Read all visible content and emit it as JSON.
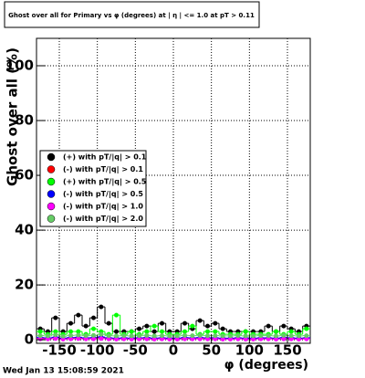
{
  "chart_data": {
    "type": "histogram",
    "title": "Ghost over all for Primary vs φ (degrees) at | η | <= 1.0 at pT > 0.11",
    "x_label": "φ (degrees)",
    "y_label": "Ghost over all (%)",
    "timestamp": "Wed Jan 13 15:08:59 2021",
    "x": [
      -175,
      -165,
      -155,
      -145,
      -135,
      -125,
      -115,
      -105,
      -95,
      -85,
      -75,
      -65,
      -55,
      -45,
      -35,
      -25,
      -15,
      -5,
      5,
      15,
      25,
      35,
      45,
      55,
      65,
      75,
      85,
      95,
      105,
      115,
      125,
      135,
      145,
      155,
      165,
      175
    ],
    "series": [
      {
        "name": "(+) with pT/|q| > 0.1",
        "color": "#000000",
        "values": [
          4,
          3,
          8,
          3,
          6,
          9,
          5,
          8,
          12,
          6,
          3,
          3,
          3,
          4,
          5,
          3,
          6,
          3,
          3,
          6,
          4,
          7,
          5,
          6,
          4,
          3,
          3,
          3,
          3,
          3,
          5,
          3,
          5,
          4,
          3,
          5
        ]
      },
      {
        "name": "(-) with pT/|q| > 0.1",
        "color": "#ff0000",
        "values": [
          0.5,
          0.5,
          0.8,
          0.4,
          0.6,
          0.7,
          0.5,
          0.6,
          0.8,
          0.5,
          0.4,
          0.5,
          0.4,
          0.5,
          0.6,
          0.4,
          0.5,
          0.4,
          0.4,
          0.6,
          0.5,
          0.6,
          0.5,
          0.5,
          0.4,
          0.4,
          0.5,
          0.4,
          0.4,
          0.5,
          0.5,
          0.4,
          0.6,
          0.5,
          0.4,
          0.5
        ]
      },
      {
        "name": "(+) with pT/|q| > 0.5",
        "color": "#00ff00",
        "values": [
          3,
          2,
          3,
          2,
          3,
          3,
          2,
          4,
          3,
          2,
          9,
          2,
          3,
          2,
          3,
          5,
          3,
          2,
          2,
          3,
          5,
          2,
          3,
          3,
          2,
          2,
          2,
          3,
          2,
          2,
          2,
          3,
          2,
          3,
          2,
          4
        ]
      },
      {
        "name": "(-) with pT/|q| > 0.5",
        "color": "#0000ff",
        "values": [
          0.8,
          0.7,
          0.9,
          0.6,
          0.8,
          0.9,
          0.7,
          0.8,
          1,
          0.7,
          0.6,
          0.7,
          0.6,
          0.7,
          0.8,
          0.6,
          0.7,
          0.6,
          0.6,
          0.8,
          0.7,
          0.8,
          0.7,
          0.7,
          0.6,
          0.6,
          0.7,
          0.6,
          0.6,
          0.7,
          0.7,
          0.6,
          0.8,
          0.7,
          0.6,
          0.7
        ]
      },
      {
        "name": "(-) with pT/|q| > 1.0",
        "color": "#ff00ff",
        "values": [
          0.3,
          0.3,
          0.4,
          0.2,
          0.3,
          0.4,
          0.3,
          0.3,
          0.4,
          0.3,
          0.2,
          0.3,
          0.2,
          0.3,
          0.3,
          0.2,
          0.3,
          0.2,
          0.2,
          0.3,
          0.3,
          0.3,
          0.3,
          0.3,
          0.2,
          0.2,
          0.3,
          0.2,
          0.2,
          0.3,
          0.3,
          0.2,
          0.3,
          0.3,
          0.2,
          0.3
        ]
      },
      {
        "name": "(-) with pT/|q| > 2.0",
        "color": "#66cc66",
        "values": [
          1.5,
          1.4,
          1.8,
          1.3,
          1.6,
          1.7,
          1.5,
          1.6,
          2,
          1.5,
          1.4,
          1.5,
          1.4,
          1.5,
          1.6,
          1.4,
          1.5,
          1.4,
          1.4,
          1.6,
          1.5,
          1.6,
          1.5,
          1.5,
          1.4,
          1.4,
          1.5,
          1.4,
          1.4,
          1.5,
          1.5,
          1.4,
          1.6,
          1.5,
          1.4,
          1.5
        ]
      }
    ],
    "bin_width": 10,
    "xlim": [
      -180,
      180
    ],
    "ylim": [
      -1.3,
      110
    ],
    "xticks": [
      -150,
      -100,
      -50,
      0,
      50,
      100,
      150
    ],
    "yticks": [
      0,
      20,
      40,
      60,
      80,
      100
    ],
    "grid": true
  }
}
